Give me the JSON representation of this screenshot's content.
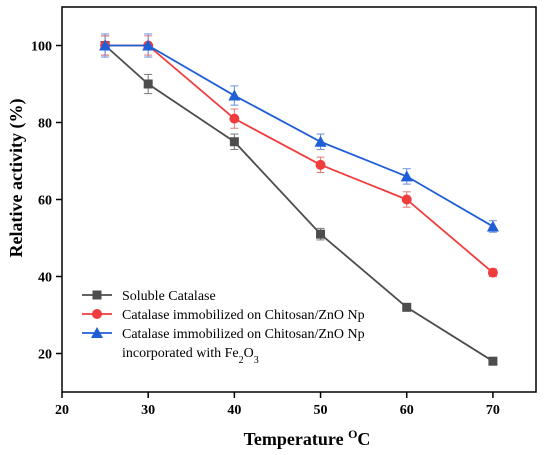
{
  "chart_data": {
    "type": "line",
    "xlabel": "Temperature",
    "xlabel_unit_sup": "O",
    "xlabel_unit": "C",
    "ylabel": "Relative activity (%)",
    "xlim": [
      20,
      75
    ],
    "ylim": [
      10,
      110
    ],
    "x_ticks": [
      20,
      30,
      40,
      50,
      60,
      70
    ],
    "y_ticks": [
      20,
      40,
      60,
      80,
      100
    ],
    "grid": false,
    "legend_position": "bottom-left",
    "series": [
      {
        "name": "Soluble Catalase",
        "color": "#4d4d4d",
        "marker": "square",
        "x": [
          25,
          30,
          40,
          50,
          60,
          70
        ],
        "y": [
          100,
          90,
          75,
          51,
          32,
          18
        ],
        "err": [
          2.5,
          2.5,
          2,
          1.5,
          0,
          0
        ]
      },
      {
        "name": "Catalase immobilized on Chitosan/ZnO Np",
        "color": "#f03c3c",
        "marker": "circle",
        "x": [
          25,
          30,
          40,
          50,
          60,
          70
        ],
        "y": [
          100,
          100,
          81,
          69,
          60,
          41
        ],
        "err": [
          2.5,
          2.5,
          2.5,
          2,
          2,
          1
        ]
      },
      {
        "name": "Catalase immobilized on Chitosan/ZnO Np",
        "name_line2_prefix": "incorporated with Fe",
        "name_line2_sub1": "2",
        "name_line2_mid": "O",
        "name_line2_sub2": "3",
        "color": "#1f5fd6",
        "marker": "triangle",
        "x": [
          25,
          30,
          40,
          50,
          60,
          70
        ],
        "y": [
          100,
          100,
          87,
          75,
          66,
          53
        ],
        "err": [
          3,
          3,
          2.5,
          2,
          2,
          1.5
        ]
      }
    ]
  }
}
